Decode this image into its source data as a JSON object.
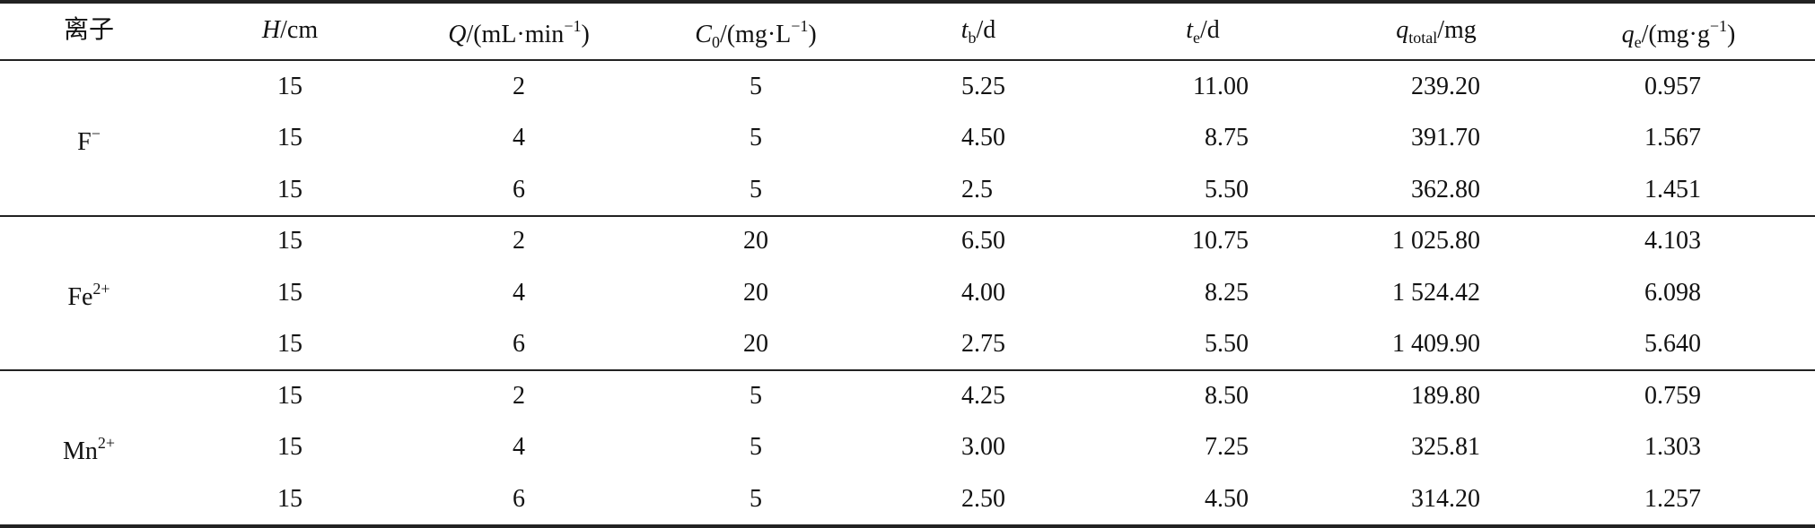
{
  "table": {
    "header": [
      [
        {
          "text": "离子",
          "format": "normal"
        }
      ],
      [
        {
          "text": "H",
          "format": "italic"
        },
        {
          "text": "/cm",
          "format": "normal"
        }
      ],
      [
        {
          "text": "Q",
          "format": "italic"
        },
        {
          "text": "/(mL·min",
          "format": "normal"
        },
        {
          "text": "−1",
          "format": "sup"
        },
        {
          "text": ")",
          "format": "normal"
        }
      ],
      [
        {
          "text": "C",
          "format": "italic"
        },
        {
          "text": "0",
          "format": "sub"
        },
        {
          "text": "/(mg·L",
          "format": "normal"
        },
        {
          "text": "−1",
          "format": "sup"
        },
        {
          "text": ")",
          "format": "normal"
        }
      ],
      [
        {
          "text": "t",
          "format": "italic"
        },
        {
          "text": "b",
          "format": "sub"
        },
        {
          "text": "/d",
          "format": "normal"
        }
      ],
      [
        {
          "text": "t",
          "format": "italic"
        },
        {
          "text": "e",
          "format": "sub"
        },
        {
          "text": "/d",
          "format": "normal"
        }
      ],
      [
        {
          "text": "q",
          "format": "italic"
        },
        {
          "text": "total",
          "format": "sub"
        },
        {
          "text": "/mg",
          "format": "normal"
        }
      ],
      [
        {
          "text": "q",
          "format": "italic"
        },
        {
          "text": "e",
          "format": "sub"
        },
        {
          "text": "/(mg·g",
          "format": "normal"
        },
        {
          "text": "−1",
          "format": "sup"
        },
        {
          "text": ")",
          "format": "normal"
        }
      ]
    ],
    "groups": [
      {
        "ion": [
          {
            "text": "F",
            "format": "normal"
          },
          {
            "text": "−",
            "format": "sup"
          }
        ],
        "rows": [
          [
            "15",
            "2",
            "5",
            "5.25",
            "11.00",
            "239.20",
            "0.957"
          ],
          [
            "15",
            "4",
            "5",
            "4.50",
            "8.75",
            "391.70",
            "1.567"
          ],
          [
            "15",
            "6",
            "5",
            "2.5",
            "5.50",
            "362.80",
            "1.451"
          ]
        ]
      },
      {
        "ion": [
          {
            "text": "Fe",
            "format": "normal"
          },
          {
            "text": "2+",
            "format": "sup"
          }
        ],
        "rows": [
          [
            "15",
            "2",
            "20",
            "6.50",
            "10.75",
            "1 025.80",
            "4.103"
          ],
          [
            "15",
            "4",
            "20",
            "4.00",
            "8.25",
            "1 524.42",
            "6.098"
          ],
          [
            "15",
            "6",
            "20",
            "2.75",
            "5.50",
            "1 409.90",
            "5.640"
          ]
        ]
      },
      {
        "ion": [
          {
            "text": "Mn",
            "format": "normal"
          },
          {
            "text": "2+",
            "format": "sup"
          }
        ],
        "rows": [
          [
            "15",
            "2",
            "5",
            "4.25",
            "8.50",
            "189.80",
            "0.759"
          ],
          [
            "15",
            "4",
            "5",
            "3.00",
            "7.25",
            "325.81",
            "1.303"
          ],
          [
            "15",
            "6",
            "5",
            "2.50",
            "4.50",
            "314.20",
            "1.257"
          ]
        ]
      }
    ]
  }
}
